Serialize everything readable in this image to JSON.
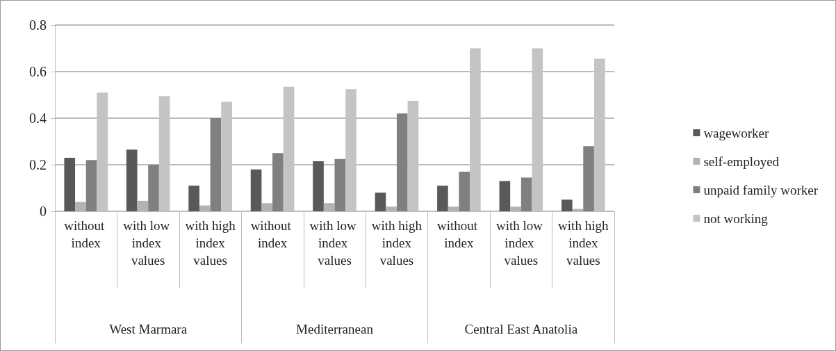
{
  "chart_data": {
    "type": "bar",
    "categories": [
      "without index",
      "with low index values",
      "with high index values",
      "without index",
      "with low index values",
      "with high index values",
      "without index",
      "with low index values",
      "with high index values"
    ],
    "annotations": [
      "West Marmara",
      "Mediterranean",
      "Central East Anatolia"
    ],
    "series": [
      {
        "name": "wageworker",
        "color": "#595959",
        "values": [
          0.23,
          0.265,
          0.11,
          0.18,
          0.215,
          0.08,
          0.11,
          0.13,
          0.05
        ]
      },
      {
        "name": "self-employed",
        "color": "#b3b3b3",
        "values": [
          0.04,
          0.045,
          0.025,
          0.035,
          0.035,
          0.02,
          0.02,
          0.02,
          0.01
        ]
      },
      {
        "name": "unpaid family worker",
        "color": "#808080",
        "values": [
          0.22,
          0.2,
          0.4,
          0.25,
          0.225,
          0.42,
          0.17,
          0.145,
          0.28
        ]
      },
      {
        "name": "not working",
        "color": "#c4c4c4",
        "values": [
          0.51,
          0.495,
          0.47,
          0.535,
          0.525,
          0.475,
          0.7,
          0.7,
          0.655
        ]
      }
    ],
    "ylim": [
      0,
      0.8
    ],
    "yticks": [
      0,
      0.2,
      0.4,
      0.6,
      0.8
    ],
    "grid": "y",
    "legend": "right"
  }
}
